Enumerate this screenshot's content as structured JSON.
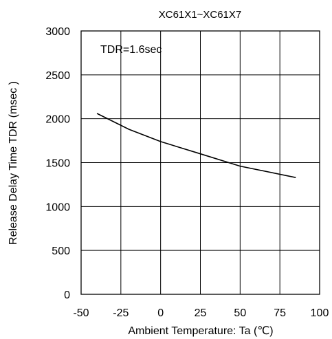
{
  "chart_data": {
    "type": "line",
    "title": "XC61X1~XC61X7",
    "xlabel": "Ambient Temperature: Ta (℃)",
    "ylabel": "Release Delay Time   TDR (msec )",
    "annotation": "TDR=1.6sec",
    "xlim": [
      -50,
      100
    ],
    "ylim": [
      0,
      3000
    ],
    "xticks": [
      -50,
      -25,
      0,
      25,
      50,
      75,
      100
    ],
    "yticks": [
      0,
      500,
      1000,
      1500,
      2000,
      2500,
      3000
    ],
    "grid": true,
    "legend": "none",
    "line_color": "#000000",
    "series": [
      {
        "x": [
          -40,
          -20,
          0,
          25,
          50,
          85
        ],
        "y": [
          2060,
          1880,
          1740,
          1600,
          1460,
          1330
        ]
      }
    ]
  }
}
